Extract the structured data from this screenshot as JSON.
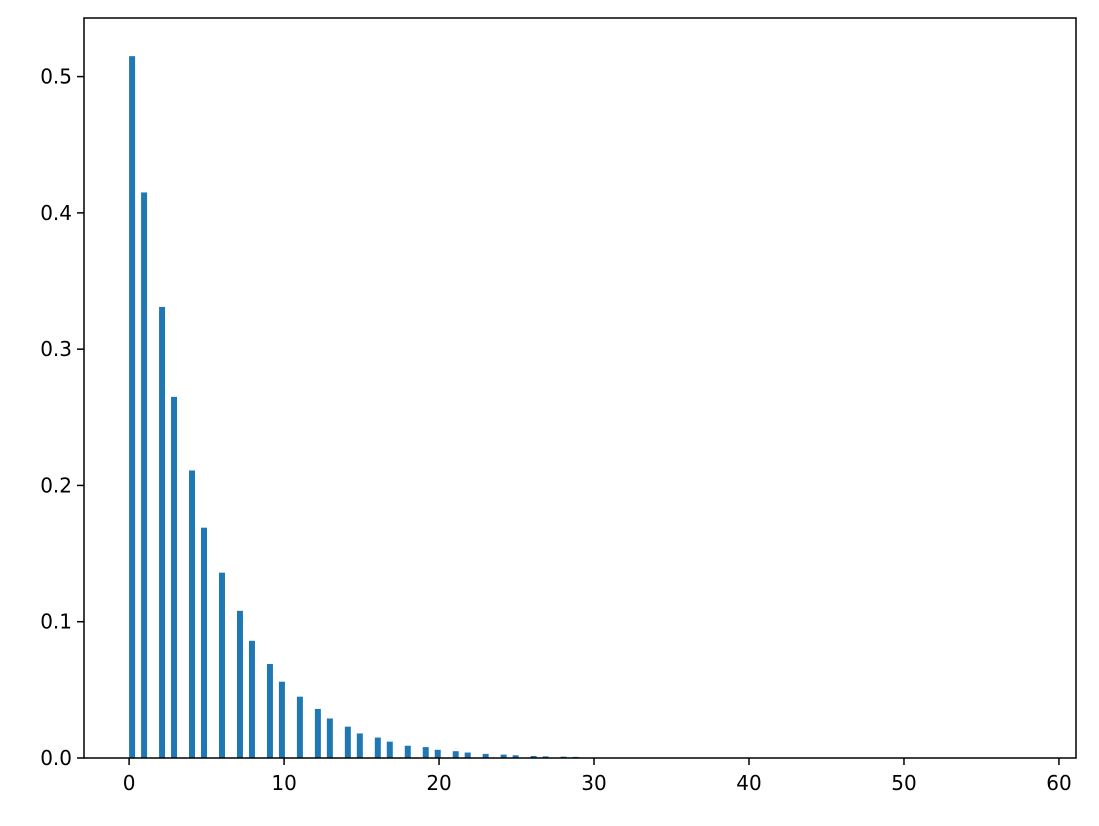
{
  "chart_data": {
    "type": "bar",
    "title": "",
    "xlabel": "",
    "ylabel": "",
    "xlim": [
      -2.91,
      61.1
    ],
    "ylim": [
      0,
      0.543
    ],
    "grid": false,
    "bar_color": "#1f77b4",
    "bin_width": 0.3867,
    "x": [
      0,
      1,
      2,
      3,
      4,
      5,
      6,
      7,
      8,
      9,
      10,
      11,
      12,
      13,
      14,
      15,
      16,
      17,
      18,
      19,
      20,
      21,
      22,
      23,
      24,
      25,
      26,
      27,
      28,
      29
    ],
    "values": [
      0.515,
      0.415,
      0.331,
      0.265,
      0.211,
      0.169,
      0.136,
      0.108,
      0.086,
      0.069,
      0.056,
      0.045,
      0.036,
      0.029,
      0.023,
      0.018,
      0.015,
      0.012,
      0.009,
      0.008,
      0.006,
      0.005,
      0.004,
      0.003,
      0.0025,
      0.002,
      0.0015,
      0.0012,
      0.001,
      0.0008
    ],
    "xticks": [
      0,
      10,
      20,
      30,
      40,
      50,
      60
    ],
    "xtick_labels": [
      "0",
      "10",
      "20",
      "30",
      "40",
      "50",
      "60"
    ],
    "yticks": [
      0.0,
      0.1,
      0.2,
      0.3,
      0.4,
      0.5
    ],
    "ytick_labels": [
      "0.0",
      "0.1",
      "0.2",
      "0.3",
      "0.4",
      "0.5"
    ]
  }
}
